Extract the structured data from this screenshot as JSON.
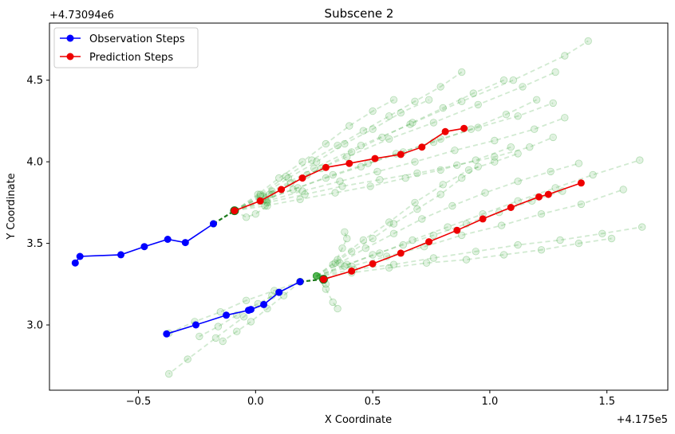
{
  "chart_data": {
    "type": "line",
    "title": "Subscene 2",
    "xlabel": "X Coordinate",
    "ylabel": "Y Coordinate",
    "x_offset_label": "+4.175e5",
    "y_offset_label": "+4.73094e6",
    "xlim": [
      -0.88,
      1.76
    ],
    "ylim": [
      2.6,
      4.85
    ],
    "x_ticks": [
      -0.5,
      0.0,
      0.5,
      1.0,
      1.5
    ],
    "x_tick_labels": [
      "−0.5",
      "0.0",
      "0.5",
      "1.0",
      "1.5"
    ],
    "y_ticks": [
      3.0,
      3.5,
      4.0,
      4.5
    ],
    "y_tick_labels": [
      "3.0",
      "3.5",
      "4.0",
      "4.5"
    ],
    "legend_position": "top-left",
    "grid": false,
    "colors": {
      "observation": "#0000ff",
      "prediction": "#ee0000",
      "candidates": "#2ca02c",
      "connector": "#1a7a1a"
    },
    "series": [
      {
        "name": "Observation Steps",
        "role": "observation",
        "x": [
          -0.77,
          -0.75,
          -0.575,
          -0.475,
          -0.375,
          -0.3,
          -0.18
        ],
        "y": [
          3.38,
          3.42,
          3.43,
          3.48,
          3.525,
          3.505,
          3.62
        ]
      },
      {
        "role": "observation",
        "x": [
          -0.38,
          -0.255,
          -0.125,
          -0.03,
          -0.02,
          0.035,
          0.1,
          0.19
        ],
        "y": [
          2.945,
          3.0,
          3.06,
          3.09,
          3.095,
          3.125,
          3.2,
          3.265
        ]
      },
      {
        "name": "Prediction Steps",
        "role": "prediction",
        "x": [
          -0.09,
          0.02,
          0.11,
          0.2,
          0.3,
          0.4,
          0.51,
          0.62,
          0.71,
          0.81,
          0.89
        ],
        "y": [
          3.7,
          3.76,
          3.83,
          3.9,
          3.965,
          3.99,
          4.02,
          4.045,
          4.09,
          4.185,
          4.205
        ]
      },
      {
        "role": "prediction",
        "x": [
          0.29,
          0.41,
          0.5,
          0.62,
          0.74,
          0.86,
          0.97,
          1.09,
          1.21,
          1.25,
          1.39
        ],
        "y": [
          3.28,
          3.33,
          3.375,
          3.44,
          3.51,
          3.58,
          3.65,
          3.72,
          3.785,
          3.8,
          3.87
        ]
      }
    ],
    "candidate_trajectories": [
      {
        "x": [
          -0.09,
          0.02,
          0.13,
          0.24,
          0.35,
          0.46,
          0.57,
          0.68,
          0.79,
          0.88
        ],
        "y": [
          3.7,
          3.8,
          3.91,
          4.01,
          4.1,
          4.19,
          4.28,
          4.37,
          4.46,
          4.55
        ]
      },
      {
        "x": [
          -0.09,
          0.03,
          0.15,
          0.28,
          0.41,
          0.54,
          0.67,
          0.8,
          0.93,
          1.06
        ],
        "y": [
          3.7,
          3.79,
          3.87,
          3.96,
          4.06,
          4.15,
          4.24,
          4.33,
          4.42,
          4.5
        ]
      },
      {
        "x": [
          -0.09,
          0.04,
          0.18,
          0.33,
          0.48,
          0.63,
          0.79,
          0.95,
          1.12,
          1.27
        ],
        "y": [
          3.7,
          3.77,
          3.84,
          3.92,
          3.99,
          4.06,
          4.14,
          4.21,
          4.28,
          4.36
        ]
      },
      {
        "x": [
          -0.09,
          0.05,
          0.2,
          0.36,
          0.52,
          0.68,
          0.85,
          1.02,
          1.19,
          1.32
        ],
        "y": [
          3.7,
          3.76,
          3.82,
          3.88,
          3.94,
          4.0,
          4.07,
          4.13,
          4.2,
          4.27
        ]
      },
      {
        "x": [
          -0.09,
          0.05,
          0.21,
          0.37,
          0.53,
          0.69,
          0.86,
          1.02,
          1.17,
          1.27
        ],
        "y": [
          3.7,
          3.75,
          3.8,
          3.85,
          3.89,
          3.93,
          3.98,
          4.03,
          4.09,
          4.15
        ]
      },
      {
        "x": [
          -0.09,
          0.04,
          0.19,
          0.34,
          0.49,
          0.64,
          0.79,
          0.94,
          1.09
        ],
        "y": [
          3.7,
          3.73,
          3.77,
          3.81,
          3.85,
          3.9,
          3.95,
          4.01,
          4.09
        ]
      },
      {
        "x": [
          -0.09,
          0.07,
          0.25,
          0.45,
          0.66,
          0.88,
          1.1,
          1.32,
          1.42
        ],
        "y": [
          3.7,
          3.82,
          3.96,
          4.1,
          4.23,
          4.37,
          4.5,
          4.65,
          4.74
        ]
      },
      {
        "x": [
          -0.09,
          0.06,
          0.22,
          0.39,
          0.57,
          0.76,
          0.95,
          1.14,
          1.28
        ],
        "y": [
          3.7,
          3.8,
          3.92,
          4.03,
          4.14,
          4.24,
          4.35,
          4.46,
          4.55
        ]
      },
      {
        "x": [
          -0.09,
          0.02,
          0.14,
          0.26,
          0.38,
          0.5,
          0.62,
          0.74
        ],
        "y": [
          3.7,
          3.79,
          3.9,
          4.0,
          4.11,
          4.2,
          4.3,
          4.38
        ]
      },
      {
        "x": [
          -0.09,
          0.01,
          0.1,
          0.2,
          0.3,
          0.4,
          0.5,
          0.59
        ],
        "y": [
          3.7,
          3.8,
          3.9,
          4.0,
          4.11,
          4.22,
          4.31,
          4.38
        ]
      },
      {
        "x": [
          -0.09,
          0.03,
          0.16,
          0.3,
          0.45,
          0.6,
          0.76,
          0.92,
          1.07,
          1.2
        ],
        "y": [
          3.7,
          3.76,
          3.83,
          3.9,
          3.97,
          4.05,
          4.12,
          4.2,
          4.29,
          4.38
        ]
      },
      {
        "x": [
          -0.09,
          -0.04,
          0.0,
          0.05,
          0.07
        ],
        "y": [
          3.7,
          3.66,
          3.68,
          3.73,
          3.8
        ]
      },
      {
        "x": [
          0.26,
          0.39,
          0.53,
          0.67,
          0.82,
          0.97,
          1.12,
          1.28,
          1.44,
          1.64
        ],
        "y": [
          3.3,
          3.37,
          3.44,
          3.52,
          3.6,
          3.68,
          3.76,
          3.84,
          3.92,
          4.01
        ]
      },
      {
        "x": [
          0.26,
          0.41,
          0.56,
          0.72,
          0.88,
          1.05,
          1.22,
          1.39,
          1.57
        ],
        "y": [
          3.3,
          3.36,
          3.42,
          3.48,
          3.55,
          3.61,
          3.68,
          3.74,
          3.83
        ]
      },
      {
        "x": [
          0.26,
          0.42,
          0.59,
          0.76,
          0.94,
          1.12,
          1.3,
          1.48,
          1.65
        ],
        "y": [
          3.3,
          3.34,
          3.37,
          3.41,
          3.45,
          3.49,
          3.52,
          3.56,
          3.6
        ]
      },
      {
        "x": [
          0.26,
          0.41,
          0.57,
          0.73,
          0.9,
          1.06,
          1.22,
          1.38,
          1.52
        ],
        "y": [
          3.3,
          3.32,
          3.35,
          3.38,
          3.4,
          3.43,
          3.46,
          3.5,
          3.53
        ]
      },
      {
        "x": [
          0.26,
          0.38,
          0.5,
          0.63,
          0.76,
          0.9,
          1.04,
          1.18,
          1.31
        ],
        "y": [
          3.3,
          3.36,
          3.43,
          3.49,
          3.55,
          3.62,
          3.69,
          3.76,
          3.82
        ]
      },
      {
        "x": [
          0.26,
          0.35,
          0.46,
          0.57,
          0.68,
          0.8,
          0.91,
          1.02,
          1.12
        ],
        "y": [
          3.3,
          3.4,
          3.52,
          3.63,
          3.75,
          3.86,
          3.95,
          4.0,
          4.05
        ]
      },
      {
        "x": [
          0.26,
          0.33,
          0.41,
          0.5,
          0.59,
          0.69,
          0.79,
          0.88,
          0.95
        ],
        "y": [
          3.3,
          3.37,
          3.45,
          3.53,
          3.62,
          3.71,
          3.8,
          3.9,
          3.97
        ]
      },
      {
        "x": [
          0.26,
          0.36,
          0.47,
          0.59,
          0.71,
          0.84,
          0.98,
          1.12,
          1.26,
          1.38
        ],
        "y": [
          3.3,
          3.38,
          3.47,
          3.56,
          3.65,
          3.73,
          3.81,
          3.88,
          3.94,
          3.99
        ]
      },
      {
        "x": [
          0.26,
          0.3,
          0.34,
          0.37,
          0.39,
          0.38
        ],
        "y": [
          3.3,
          3.25,
          3.38,
          3.47,
          3.53,
          3.57
        ]
      },
      {
        "x": [
          0.26,
          0.3,
          0.33,
          0.35
        ],
        "y": [
          3.3,
          3.22,
          3.14,
          3.1
        ]
      },
      {
        "x": [
          0.19,
          0.07,
          -0.05,
          -0.17,
          -0.29,
          -0.37
        ],
        "y": [
          3.265,
          3.18,
          3.05,
          2.92,
          2.79,
          2.7
        ]
      },
      {
        "x": [
          0.19,
          0.08,
          -0.04,
          -0.15,
          -0.26,
          -0.37
        ],
        "y": [
          3.265,
          3.21,
          3.15,
          3.08,
          3.02,
          2.95
        ]
      },
      {
        "x": [
          0.19,
          0.1,
          0.01,
          -0.08,
          -0.16,
          -0.24
        ],
        "y": [
          3.265,
          3.2,
          3.13,
          3.06,
          2.99,
          2.93
        ]
      },
      {
        "x": [
          0.19,
          0.12,
          0.05,
          -0.02,
          -0.08,
          -0.14
        ],
        "y": [
          3.265,
          3.18,
          3.1,
          3.02,
          2.96,
          2.9
        ]
      }
    ]
  }
}
